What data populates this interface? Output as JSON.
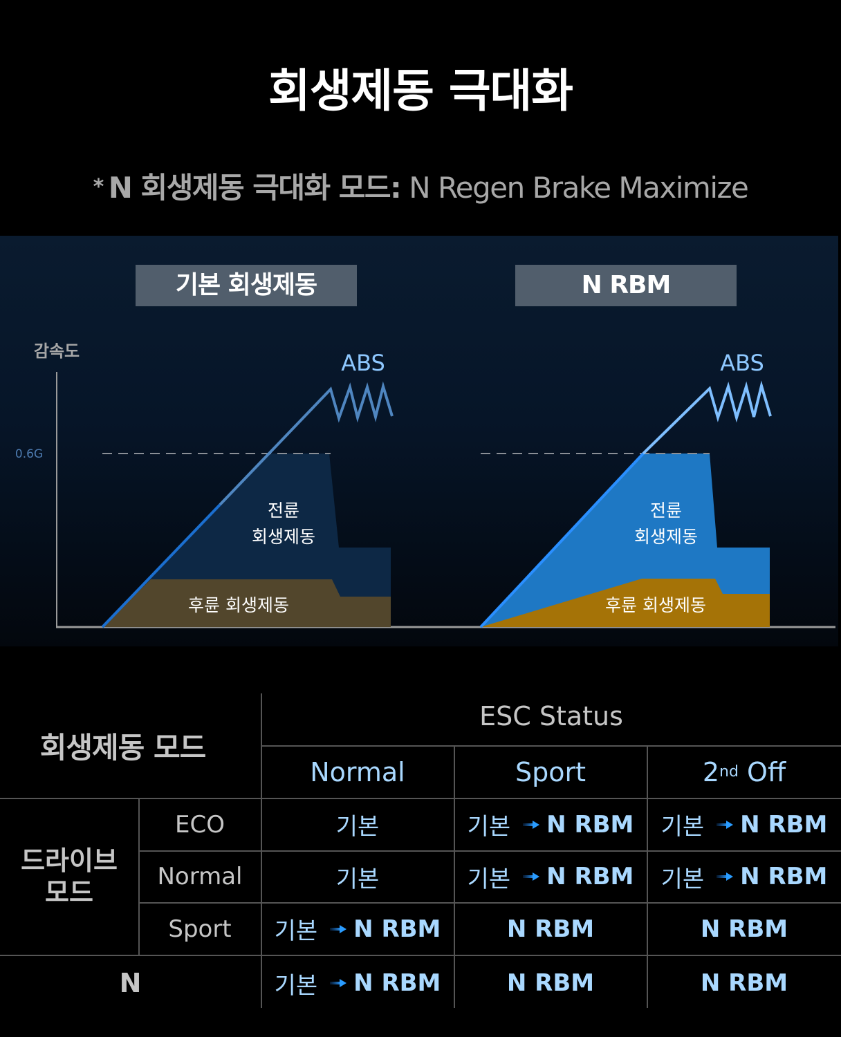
{
  "page": {
    "title": "회생제동 극대화",
    "subtitle": {
      "star": "*",
      "bold": "N 회생제동 극대화 모드:",
      "regular": "N Regen Brake Maximize"
    }
  },
  "diagram": {
    "y_axis_label": "감속도",
    "threshold_label": "0.6G",
    "panels": [
      {
        "tag": "기본 회생제동",
        "abs_label": "ABS",
        "front_label_line1": "전륜",
        "front_label_line2": "회생제동",
        "rear_label": "후륜 회생제동",
        "front_color": "#0d2845",
        "rear_color": "#52462c",
        "line_color": "#1b6fd0"
      },
      {
        "tag": "N RBM",
        "abs_label": "ABS",
        "front_label_line1": "전륜",
        "front_label_line2": "회생제동",
        "rear_label": "후륜 회생제동",
        "front_color": "#1e78c4",
        "rear_color": "#a57307",
        "line_color": "#2a8fff"
      }
    ]
  },
  "table": {
    "corner_header": "회생제동 모드",
    "esc_header": "ESC Status",
    "esc_columns": [
      {
        "label": "Normal"
      },
      {
        "label": "Sport"
      },
      {
        "label": "2",
        "sup": "nd",
        "rest": " Off"
      }
    ],
    "group_label_line1": "드라이브",
    "group_label_line2": "모드",
    "rows": [
      {
        "label": "ECO",
        "cells": [
          {
            "from": "기본",
            "to": ""
          },
          {
            "from": "기본",
            "to": "N RBM"
          },
          {
            "from": "기본",
            "to": "N RBM"
          }
        ]
      },
      {
        "label": "Normal",
        "cells": [
          {
            "from": "기본",
            "to": ""
          },
          {
            "from": "기본",
            "to": "N RBM"
          },
          {
            "from": "기본",
            "to": "N RBM"
          }
        ]
      },
      {
        "label": "Sport",
        "cells": [
          {
            "from": "기본",
            "to": "N RBM"
          },
          {
            "from": "",
            "to": "N RBM"
          },
          {
            "from": "",
            "to": "N RBM"
          }
        ]
      },
      {
        "label": "N",
        "cells": [
          {
            "from": "기본",
            "to": "N RBM"
          },
          {
            "from": "",
            "to": "N RBM"
          },
          {
            "from": "",
            "to": "N RBM"
          }
        ]
      }
    ]
  }
}
